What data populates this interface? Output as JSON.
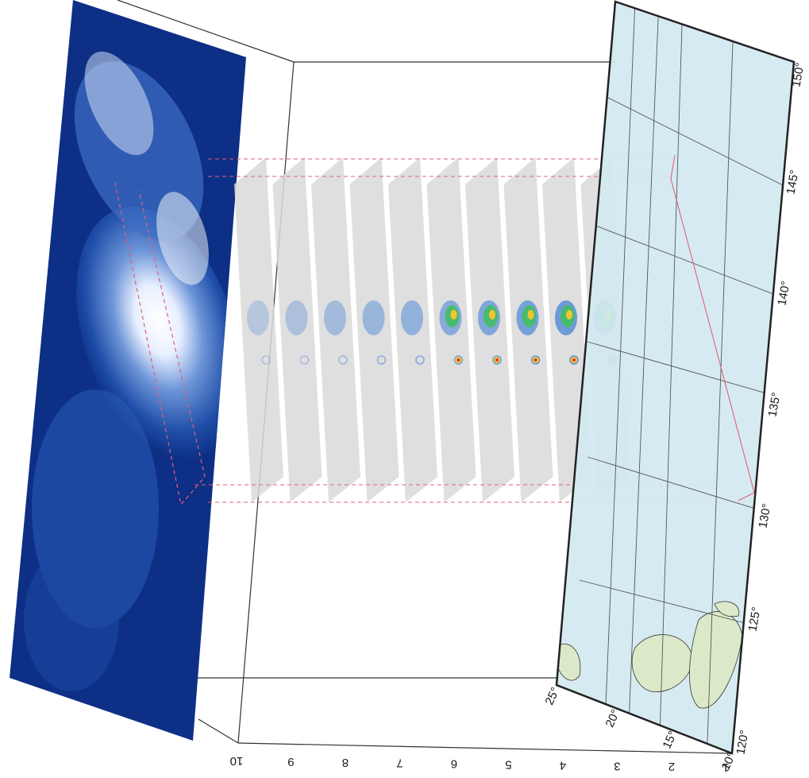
{
  "height_axis": {
    "ticks": [
      "10",
      "9",
      "8",
      "7",
      "6",
      "5",
      "4",
      "3",
      "2",
      "1"
    ]
  },
  "latitude_axis": {
    "ticks": [
      "10°",
      "15°",
      "20°",
      "25°"
    ]
  },
  "longitude_axis": {
    "ticks": [
      "120°",
      "125°",
      "130°",
      "135°",
      "140°",
      "145°",
      "150°"
    ]
  },
  "colors": {
    "satellite_dark": "#0d2f85",
    "satellite_light": "#eef4ff",
    "ocean": "#d3e9f0",
    "land": "#dbe9c9",
    "radar_swath": "#d9d9d9",
    "orbit_track": "#e0607a",
    "echo_weak": "#3a7bd5",
    "echo_moderate": "#3fbf5a",
    "echo_strong": "#f4c430",
    "echo_intense": "#d93b2b"
  },
  "layers": {
    "satellite_image": "infrared-cloud-image",
    "radar_slices": 10,
    "base_map": "map-ocean-and-islands"
  }
}
